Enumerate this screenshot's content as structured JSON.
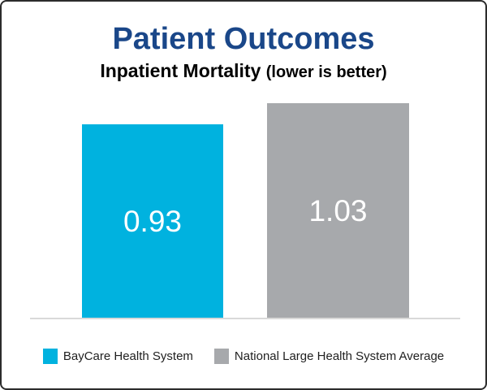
{
  "header": {
    "title": "Patient Outcomes",
    "subtitle_main": "Inpatient Mortality ",
    "subtitle_note": "(lower is better)",
    "title_color": "#1A4789"
  },
  "chart_data": {
    "type": "bar",
    "title": "Patient Outcomes",
    "subtitle": "Inpatient Mortality (lower is better)",
    "categories": [
      "BayCare Health System",
      "National Large Health System Average"
    ],
    "values": [
      0.93,
      1.03
    ],
    "value_labels": [
      "0.93",
      "1.03"
    ],
    "colors": [
      "#00B2DF",
      "#A7A9AC"
    ],
    "value_label_color": "#ffffff",
    "xlabel": "",
    "ylabel": "",
    "ylim": [
      0,
      1.1
    ],
    "grid": false,
    "axis_line_color": "#d9d9d9",
    "legend_position": "bottom"
  },
  "legend": {
    "items": [
      {
        "label": "BayCare Health System",
        "color": "#00B2DF"
      },
      {
        "label": "National Large Health System Average",
        "color": "#A7A9AC"
      }
    ]
  }
}
